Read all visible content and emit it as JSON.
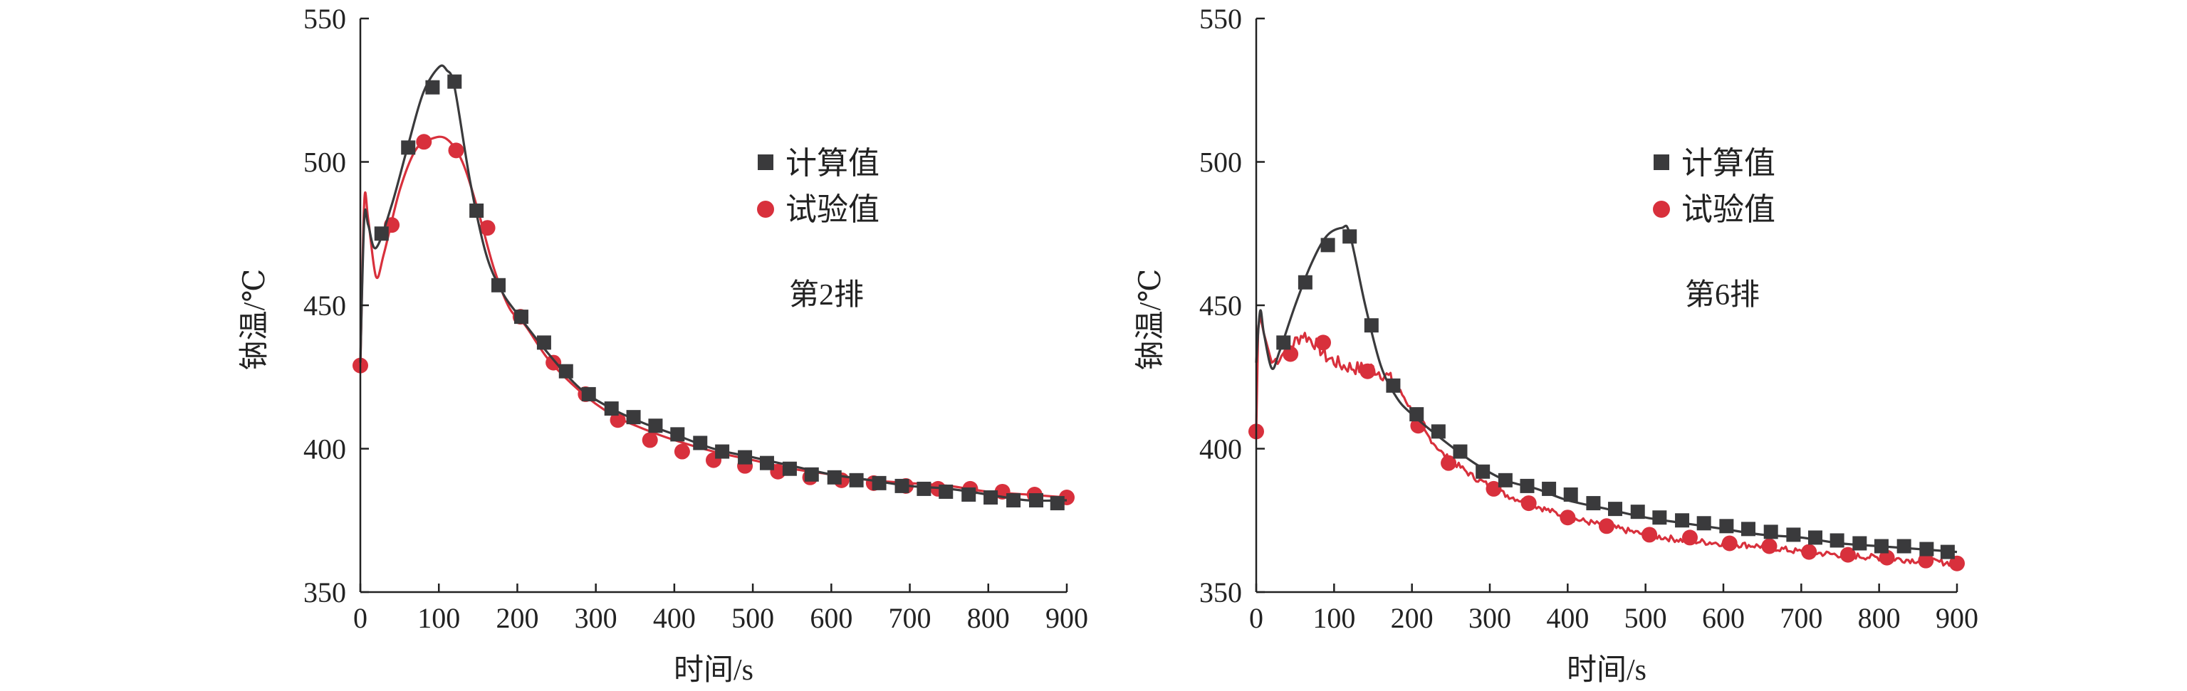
{
  "colors": {
    "calculated": "#3a3a3c",
    "experimental": "#d8303c",
    "axis": "#222222"
  },
  "chart_data": [
    {
      "type": "line",
      "annotation": "第2排",
      "xlabel": "时间/s",
      "ylabel": "钠温/℃",
      "xlim": [
        0,
        900
      ],
      "ylim": [
        350,
        550
      ],
      "x_ticks": [
        "0",
        "100",
        "200",
        "300",
        "400",
        "500",
        "600",
        "700",
        "800",
        "900"
      ],
      "y_ticks": [
        "350",
        "400",
        "450",
        "500",
        "550"
      ],
      "grid": false,
      "legend_position": "top-right",
      "series": [
        {
          "name": "计算值",
          "marker": "square",
          "color": "#3a3a3c",
          "x": [
            0,
            5,
            10,
            20,
            40,
            60,
            80,
            100,
            110,
            120,
            140,
            160,
            180,
            200,
            240,
            280,
            320,
            360,
            400,
            450,
            500,
            550,
            600,
            650,
            700,
            750,
            800,
            850,
            900
          ],
          "y": [
            430,
            480,
            478,
            470,
            485,
            505,
            524,
            533,
            532,
            526,
            493,
            468,
            455,
            447,
            433,
            421,
            414,
            409,
            405,
            400,
            397,
            394,
            391,
            389,
            387,
            386,
            384,
            382,
            382
          ],
          "marker_x": [
            27,
            61,
            92,
            120,
            148,
            176,
            205,
            234,
            262,
            291,
            320,
            348,
            376,
            404,
            433,
            461,
            490,
            518,
            547,
            575,
            604,
            632,
            661,
            690,
            718,
            746,
            775,
            803,
            832,
            861,
            888
          ],
          "marker_y": [
            475,
            505,
            526,
            528,
            483,
            457,
            446,
            437,
            427,
            419,
            414,
            411,
            408,
            405,
            402,
            399,
            397,
            395,
            393,
            391,
            390,
            389,
            388,
            387,
            386,
            385,
            384,
            383,
            382,
            382,
            381
          ]
        },
        {
          "name": "试验值",
          "marker": "circle",
          "color": "#d8303c",
          "x": [
            0,
            5,
            10,
            20,
            30,
            50,
            70,
            90,
            110,
            130,
            150,
            170,
            190,
            210,
            240,
            280,
            320,
            360,
            400,
            450,
            500,
            550,
            600,
            650,
            700,
            750,
            800,
            850,
            900
          ],
          "y": [
            428,
            486,
            480,
            460,
            468,
            490,
            504,
            508,
            508,
            500,
            483,
            463,
            449,
            443,
            431,
            420,
            412,
            407,
            403,
            399,
            396,
            393,
            391,
            389,
            388,
            387,
            385,
            384,
            383
          ],
          "marker_x": [
            0,
            40,
            81,
            122,
            162,
            204,
            246,
            287,
            328,
            369,
            410,
            450,
            490,
            532,
            573,
            613,
            654,
            695,
            736,
            777,
            818,
            859,
            900
          ],
          "marker_y": [
            429,
            478,
            507,
            504,
            477,
            446,
            430,
            419,
            410,
            403,
            399,
            396,
            394,
            392,
            390,
            389,
            388,
            387,
            386,
            386,
            385,
            384,
            383
          ]
        }
      ]
    },
    {
      "type": "line",
      "annotation": "第6排",
      "xlabel": "时间/s",
      "ylabel": "钠温/℃",
      "xlim": [
        0,
        900
      ],
      "ylim": [
        350,
        550
      ],
      "x_ticks": [
        "0",
        "100",
        "200",
        "300",
        "400",
        "500",
        "600",
        "700",
        "800",
        "900"
      ],
      "y_ticks": [
        "350",
        "400",
        "450",
        "500",
        "550"
      ],
      "grid": false,
      "legend_position": "top-right",
      "series": [
        {
          "name": "计算值",
          "marker": "square",
          "color": "#3a3a3c",
          "x": [
            0,
            5,
            10,
            20,
            30,
            50,
            70,
            90,
            110,
            120,
            140,
            160,
            180,
            200,
            240,
            280,
            320,
            360,
            400,
            450,
            500,
            550,
            600,
            650,
            700,
            750,
            800,
            850,
            900
          ],
          "y": [
            430,
            448,
            440,
            428,
            434,
            450,
            464,
            474,
            477,
            475,
            450,
            429,
            418,
            412,
            403,
            395,
            389,
            386,
            382,
            379,
            376,
            374,
            372,
            370,
            369,
            367,
            366,
            365,
            364
          ],
          "marker_x": [
            35,
            63,
            92,
            120,
            148,
            176,
            206,
            234,
            262,
            291,
            320,
            348,
            376,
            404,
            433,
            461,
            490,
            518,
            547,
            575,
            604,
            632,
            661,
            690,
            718,
            746,
            775,
            803,
            832,
            861,
            888
          ],
          "marker_y": [
            437,
            458,
            471,
            474,
            443,
            422,
            412,
            406,
            399,
            392,
            389,
            387,
            386,
            384,
            381,
            379,
            378,
            376,
            375,
            374,
            373,
            372,
            371,
            370,
            369,
            368,
            367,
            366,
            366,
            365,
            364
          ],
          "noisy": false
        },
        {
          "name": "试验值",
          "marker": "circle",
          "color": "#d8303c",
          "x": [
            0,
            3,
            10,
            20,
            30,
            45,
            60,
            75,
            90,
            110,
            130,
            150,
            170,
            190,
            210,
            240,
            280,
            320,
            360,
            400,
            450,
            500,
            550,
            600,
            650,
            700,
            750,
            800,
            850,
            900
          ],
          "y": [
            406,
            449,
            440,
            430,
            432,
            436,
            440,
            437,
            432,
            429,
            428,
            428,
            425,
            418,
            408,
            398,
            390,
            384,
            380,
            376,
            373,
            370,
            368,
            367,
            366,
            364,
            363,
            362,
            361,
            360
          ],
          "marker_x": [
            0,
            44,
            86,
            143,
            208,
            247,
            305,
            350,
            400,
            450,
            505,
            557,
            608,
            659,
            710,
            760,
            810,
            860,
            900
          ],
          "marker_y": [
            406,
            433,
            437,
            427,
            408,
            395,
            386,
            381,
            376,
            373,
            370,
            369,
            367,
            366,
            364,
            363,
            362,
            361,
            360
          ],
          "noisy": true
        }
      ]
    }
  ]
}
